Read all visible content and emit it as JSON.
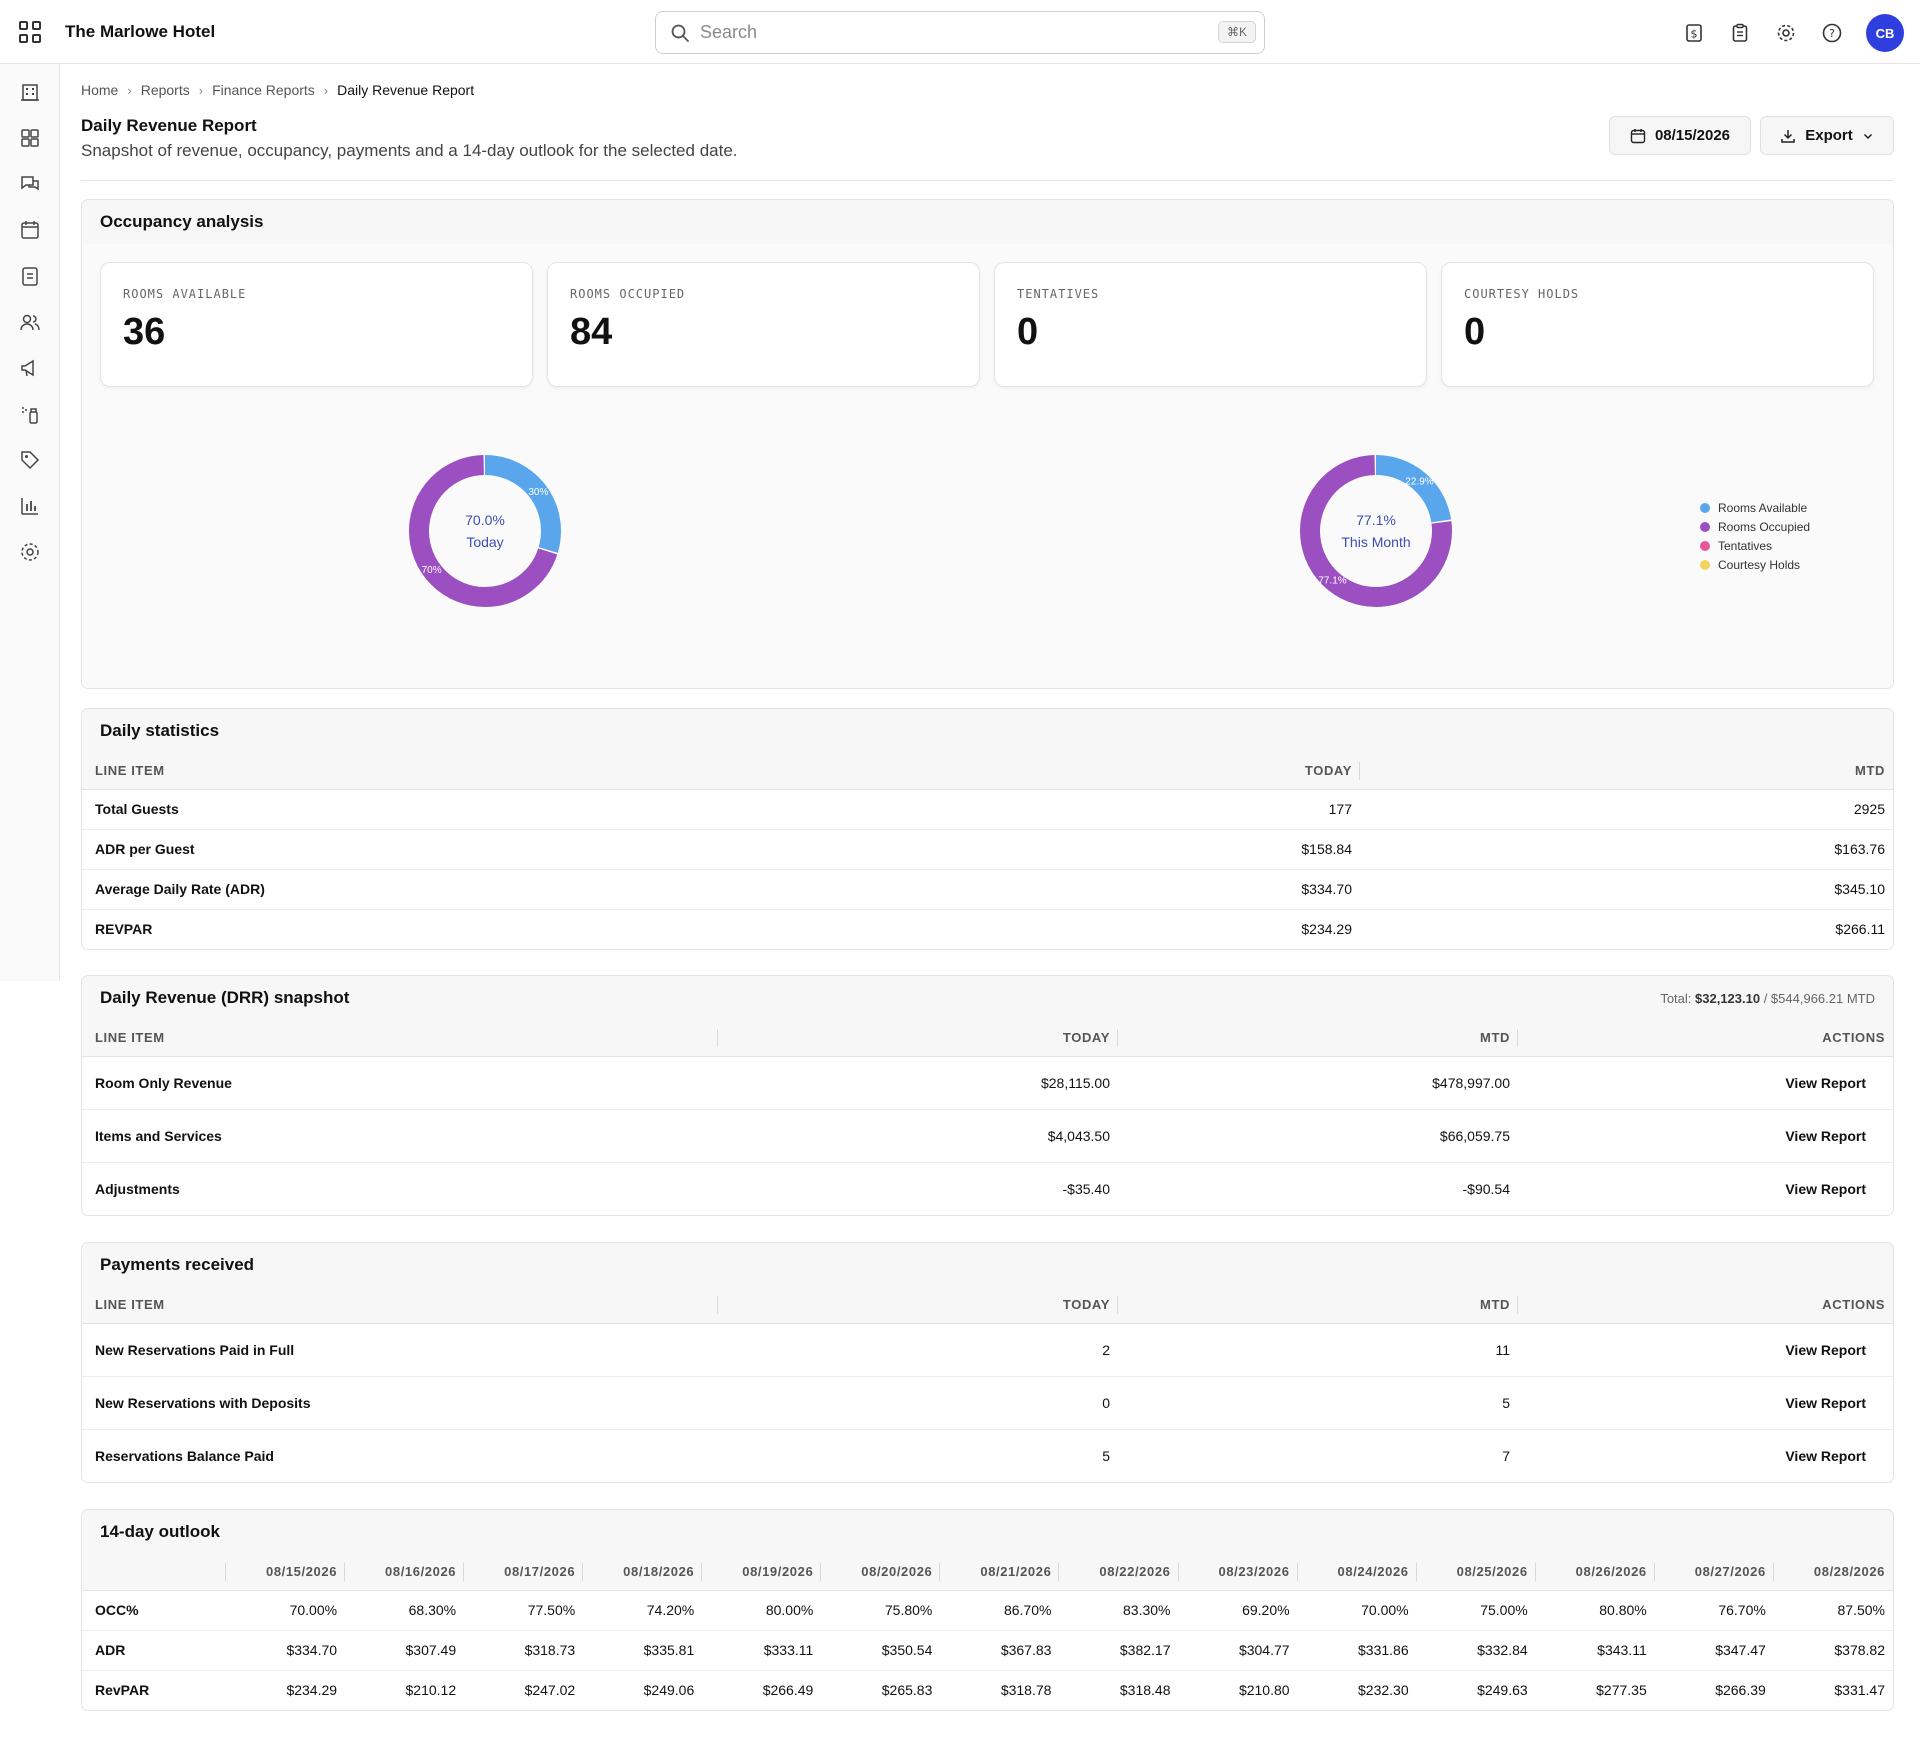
{
  "app": {
    "hotel_name": "The Marlowe Hotel",
    "search_placeholder": "Search",
    "search_shortcut": "⌘K",
    "avatar_initials": "CB",
    "accent": "#2f3fdf"
  },
  "breadcrumb": [
    "Home",
    "Reports",
    "Finance Reports",
    "Daily Revenue Report"
  ],
  "page": {
    "title": "Daily Revenue Report",
    "subtitle": "Snapshot of revenue, occupancy, payments and a 14-day outlook for the selected date.",
    "date": "08/15/2026",
    "export_label": "Export"
  },
  "occupancy": {
    "title": "Occupancy analysis",
    "cards": [
      {
        "label": "ROOMS AVAILABLE",
        "value": "36"
      },
      {
        "label": "ROOMS OCCUPIED",
        "value": "84"
      },
      {
        "label": "TENTATIVES",
        "value": "0"
      },
      {
        "label": "COURTESY HOLDS",
        "value": "0"
      }
    ],
    "donut_today": {
      "pct_label": "70.0%",
      "caption": "Today",
      "available_label": "30%",
      "occupied_label": "70%",
      "available": 0.3,
      "occupied": 0.7
    },
    "donut_month": {
      "pct_label": "77.1%",
      "caption": "This Month",
      "available_label": "22.9%",
      "occupied_label": "77.1%",
      "available": 0.229,
      "occupied": 0.771
    },
    "legend": [
      {
        "label": "Rooms Available",
        "color": "#5aa6ec"
      },
      {
        "label": "Rooms Occupied",
        "color": "#9b4fc0"
      },
      {
        "label": "Tentatives",
        "color": "#e8579b"
      },
      {
        "label": "Courtesy Holds",
        "color": "#f2d45c"
      }
    ]
  },
  "daily_stats": {
    "title": "Daily statistics",
    "headers": [
      "LINE ITEM",
      "TODAY",
      "MTD"
    ],
    "rows": [
      {
        "item": "Total Guests",
        "today": "177",
        "mtd": "2925"
      },
      {
        "item": "ADR per Guest",
        "today": "$158.84",
        "mtd": "$163.76"
      },
      {
        "item": "Average Daily Rate (ADR)",
        "today": "$334.70",
        "mtd": "$345.10"
      },
      {
        "item": "REVPAR",
        "today": "$234.29",
        "mtd": "$266.11"
      }
    ]
  },
  "drr": {
    "title": "Daily Revenue (DRR) snapshot",
    "total_prefix": "Total: ",
    "total_today": "$32,123.10",
    "total_mtd": " / $544,966.21 MTD",
    "headers": [
      "LINE ITEM",
      "TODAY",
      "MTD",
      "ACTIONS"
    ],
    "rows": [
      {
        "item": "Room Only Revenue",
        "today": "$28,115.00",
        "mtd": "$478,997.00",
        "action": "View Report"
      },
      {
        "item": "Items and Services",
        "today": "$4,043.50",
        "mtd": "$66,059.75",
        "action": "View Report"
      },
      {
        "item": "Adjustments",
        "today": "-$35.40",
        "mtd": "-$90.54",
        "action": "View Report"
      }
    ]
  },
  "payments": {
    "title": "Payments received",
    "headers": [
      "LINE ITEM",
      "TODAY",
      "MTD",
      "ACTIONS"
    ],
    "rows": [
      {
        "item": "New Reservations Paid in Full",
        "today": "2",
        "mtd": "11",
        "action": "View Report"
      },
      {
        "item": "New Reservations with Deposits",
        "today": "0",
        "mtd": "5",
        "action": "View Report"
      },
      {
        "item": "Reservations Balance Paid",
        "today": "5",
        "mtd": "7",
        "action": "View Report"
      }
    ]
  },
  "outlook": {
    "title": "14-day outlook",
    "dates": [
      "08/15/2026",
      "08/16/2026",
      "08/17/2026",
      "08/18/2026",
      "08/19/2026",
      "08/20/2026",
      "08/21/2026",
      "08/22/2026",
      "08/23/2026",
      "08/24/2026",
      "08/25/2026",
      "08/26/2026",
      "08/27/2026",
      "08/28/2026"
    ],
    "rows": [
      {
        "label": "OCC%",
        "values": [
          "70.00%",
          "68.30%",
          "77.50%",
          "74.20%",
          "80.00%",
          "75.80%",
          "86.70%",
          "83.30%",
          "69.20%",
          "70.00%",
          "75.00%",
          "80.80%",
          "76.70%",
          "87.50%"
        ]
      },
      {
        "label": "ADR",
        "values": [
          "$334.70",
          "$307.49",
          "$318.73",
          "$335.81",
          "$333.11",
          "$350.54",
          "$367.83",
          "$382.17",
          "$304.77",
          "$331.86",
          "$332.84",
          "$343.11",
          "$347.47",
          "$378.82"
        ]
      },
      {
        "label": "RevPAR",
        "values": [
          "$234.29",
          "$210.12",
          "$247.02",
          "$249.06",
          "$266.49",
          "$265.83",
          "$318.78",
          "$318.48",
          "$210.80",
          "$232.30",
          "$249.63",
          "$277.35",
          "$266.39",
          "$331.47"
        ]
      }
    ]
  }
}
